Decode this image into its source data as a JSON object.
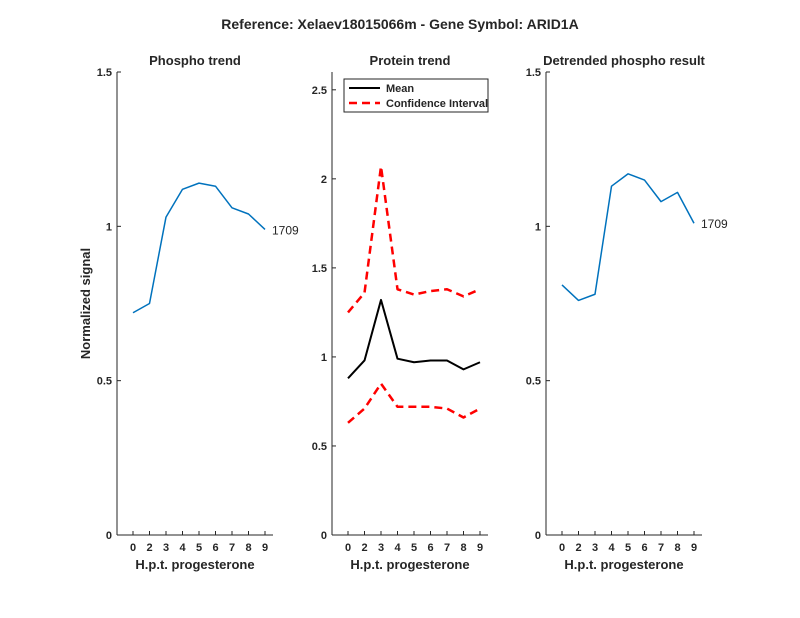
{
  "figure": {
    "title": "Reference:  Xelaev18015066m - Gene Symbol:  ARID1A"
  },
  "chart_data": [
    {
      "type": "line",
      "title": "Phospho trend",
      "xlabel": "H.p.t. progesterone",
      "ylabel": "Normalized signal",
      "ylim": [
        0,
        1.5
      ],
      "yticks": [
        0,
        0.5,
        1,
        1.5
      ],
      "yticklabels": [
        "0",
        "0.5",
        "1",
        "1.5"
      ],
      "xticks": [
        "0",
        "2",
        "3",
        "4",
        "5",
        "6",
        "7",
        "8",
        "9"
      ],
      "series": [
        {
          "values": [
            0.72,
            0.75,
            1.03,
            1.12,
            1.14,
            1.13,
            1.06,
            1.04,
            0.99
          ],
          "color": "#0072bd",
          "end_label": "1709"
        }
      ]
    },
    {
      "type": "line",
      "title": "Protein trend",
      "xlabel": "H.p.t. progesterone",
      "ylabel": "",
      "ylim": [
        0,
        2.6
      ],
      "yticks": [
        0,
        0.5,
        1,
        1.5,
        2,
        2.5
      ],
      "yticklabels": [
        "0",
        "0.5",
        "1",
        "1.5",
        "2",
        "2.5"
      ],
      "xticks": [
        "0",
        "2",
        "3",
        "4",
        "5",
        "6",
        "7",
        "8",
        "9"
      ],
      "legend": {
        "placement": "top-left",
        "entries": [
          "Mean",
          "Confidence Interval"
        ]
      },
      "series": [
        {
          "name": "Mean",
          "values": [
            0.88,
            0.98,
            1.32,
            0.99,
            0.97,
            0.98,
            0.98,
            0.93,
            0.97
          ],
          "color": "#000000",
          "dash": "solid"
        },
        {
          "name": "Confidence Interval",
          "values": [
            1.25,
            1.36,
            2.07,
            1.38,
            1.35,
            1.37,
            1.38,
            1.34,
            1.38
          ],
          "color": "#ff0000",
          "dash": "dashed"
        },
        {
          "name": "Confidence Interval",
          "values": [
            0.63,
            0.71,
            0.85,
            0.72,
            0.72,
            0.72,
            0.71,
            0.66,
            0.71
          ],
          "color": "#ff0000",
          "dash": "dashed"
        }
      ]
    },
    {
      "type": "line",
      "title": "Detrended phospho result",
      "xlabel": "H.p.t. progesterone",
      "ylabel": "",
      "ylim": [
        0,
        1.5
      ],
      "yticks": [
        0,
        0.5,
        1,
        1.5
      ],
      "yticklabels": [
        "0",
        "0.5",
        "1",
        "1.5"
      ],
      "xticks": [
        "0",
        "2",
        "3",
        "4",
        "5",
        "6",
        "7",
        "8",
        "9"
      ],
      "series": [
        {
          "values": [
            0.81,
            0.76,
            0.78,
            1.13,
            1.17,
            1.15,
            1.08,
            1.11,
            1.01
          ],
          "color": "#0072bd",
          "end_label": "1709"
        }
      ]
    }
  ]
}
